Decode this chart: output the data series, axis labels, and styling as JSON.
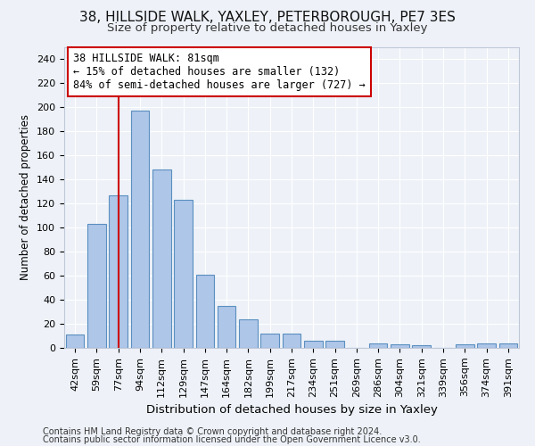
{
  "title1": "38, HILLSIDE WALK, YAXLEY, PETERBOROUGH, PE7 3ES",
  "title2": "Size of property relative to detached houses in Yaxley",
  "xlabel": "Distribution of detached houses by size in Yaxley",
  "ylabel": "Number of detached properties",
  "footer1": "Contains HM Land Registry data © Crown copyright and database right 2024.",
  "footer2": "Contains public sector information licensed under the Open Government Licence v3.0.",
  "categories": [
    "42sqm",
    "59sqm",
    "77sqm",
    "94sqm",
    "112sqm",
    "129sqm",
    "147sqm",
    "164sqm",
    "182sqm",
    "199sqm",
    "217sqm",
    "234sqm",
    "251sqm",
    "269sqm",
    "286sqm",
    "304sqm",
    "321sqm",
    "339sqm",
    "356sqm",
    "374sqm",
    "391sqm"
  ],
  "values": [
    11,
    103,
    127,
    197,
    148,
    123,
    61,
    35,
    24,
    12,
    12,
    6,
    6,
    0,
    4,
    3,
    2,
    0,
    3,
    4,
    4
  ],
  "bar_color": "#aec6e8",
  "bar_edge_color": "#5a8fc0",
  "bar_edge_width": 0.8,
  "vline_x": 2,
  "vline_color": "#cc0000",
  "annotation_line1": "38 HILLSIDE WALK: 81sqm",
  "annotation_line2": "← 15% of detached houses are smaller (132)",
  "annotation_line3": "84% of semi-detached houses are larger (727) →",
  "annotation_box_color": "#ffffff",
  "annotation_box_edge": "#cc0000",
  "annotation_fontsize": 8.5,
  "ylim": [
    0,
    250
  ],
  "yticks": [
    0,
    20,
    40,
    60,
    80,
    100,
    120,
    140,
    160,
    180,
    200,
    220,
    240
  ],
  "bg_color": "#eef2f8",
  "grid_color": "#ffffff",
  "title1_fontsize": 11,
  "title2_fontsize": 9.5,
  "xlabel_fontsize": 9.5,
  "ylabel_fontsize": 8.5,
  "tick_fontsize": 8,
  "footer_fontsize": 7
}
